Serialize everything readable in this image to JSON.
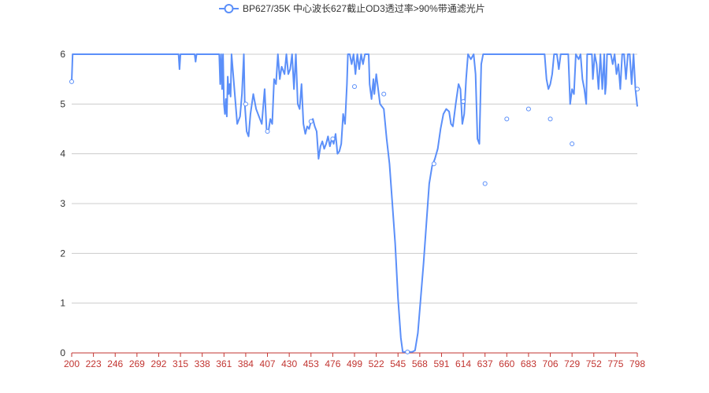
{
  "chart_data": {
    "type": "line",
    "title": "",
    "xlabel": "",
    "ylabel": "",
    "xlim": [
      200,
      798
    ],
    "ylim": [
      0,
      6
    ],
    "grid": "horizontal",
    "legend_position": "top-center",
    "x_ticks": [
      "200",
      "223",
      "246",
      "269",
      "292",
      "315",
      "338",
      "361",
      "384",
      "407",
      "430",
      "453",
      "476",
      "499",
      "522",
      "545",
      "568",
      "591",
      "614",
      "637",
      "660",
      "683",
      "706",
      "729",
      "752",
      "775",
      "798"
    ],
    "y_ticks": [
      "0",
      "1",
      "2",
      "3",
      "4",
      "5",
      "6"
    ],
    "colors": {
      "line": "#5b8ff9",
      "x_tick_label": "#c23531",
      "x_axis": "#c23531",
      "y_tick_label": "#333333",
      "grid": "#cccccc"
    },
    "series": [
      {
        "name": "BP627/35K 中心波长627截止OD3透过率>90%带通滤光片",
        "points": [
          [
            200,
            5.45
          ],
          [
            201,
            6
          ],
          [
            230,
            6
          ],
          [
            313,
            6
          ],
          [
            314,
            5.7
          ],
          [
            315,
            6
          ],
          [
            330,
            6
          ],
          [
            331,
            5.85
          ],
          [
            332,
            6
          ],
          [
            356,
            6
          ],
          [
            357,
            5.4
          ],
          [
            358,
            6
          ],
          [
            359,
            5.3
          ],
          [
            360,
            6
          ],
          [
            361,
            5.0
          ],
          [
            362,
            4.8
          ],
          [
            363,
            5.1
          ],
          [
            364,
            4.75
          ],
          [
            365,
            5.55
          ],
          [
            366,
            5.2
          ],
          [
            367,
            5.4
          ],
          [
            368,
            5.15
          ],
          [
            369,
            6
          ],
          [
            372,
            5.3
          ],
          [
            375,
            4.6
          ],
          [
            378,
            4.75
          ],
          [
            380,
            5.2
          ],
          [
            382,
            6
          ],
          [
            383,
            5.0
          ],
          [
            385,
            4.45
          ],
          [
            387,
            4.35
          ],
          [
            389,
            4.8
          ],
          [
            392,
            5.2
          ],
          [
            395,
            4.9
          ],
          [
            398,
            4.75
          ],
          [
            401,
            4.6
          ],
          [
            404,
            5.3
          ],
          [
            406,
            4.5
          ],
          [
            408,
            4.45
          ],
          [
            410,
            4.7
          ],
          [
            412,
            4.6
          ],
          [
            414,
            5.5
          ],
          [
            416,
            5.4
          ],
          [
            418,
            6
          ],
          [
            420,
            5.5
          ],
          [
            422,
            5.75
          ],
          [
            425,
            5.6
          ],
          [
            427,
            6
          ],
          [
            429,
            5.6
          ],
          [
            431,
            5.7
          ],
          [
            433,
            6
          ],
          [
            435,
            5.3
          ],
          [
            437,
            6
          ],
          [
            439,
            5.0
          ],
          [
            441,
            4.9
          ],
          [
            443,
            5.4
          ],
          [
            445,
            4.6
          ],
          [
            447,
            4.4
          ],
          [
            449,
            4.55
          ],
          [
            451,
            4.5
          ],
          [
            453,
            4.65
          ],
          [
            455,
            4.7
          ],
          [
            457,
            4.55
          ],
          [
            459,
            4.45
          ],
          [
            461,
            3.9
          ],
          [
            463,
            4.15
          ],
          [
            465,
            4.25
          ],
          [
            467,
            4.1
          ],
          [
            469,
            4.2
          ],
          [
            471,
            4.35
          ],
          [
            473,
            4.15
          ],
          [
            475,
            4.3
          ],
          [
            477,
            4.2
          ],
          [
            479,
            4.4
          ],
          [
            481,
            4.0
          ],
          [
            483,
            4.05
          ],
          [
            485,
            4.2
          ],
          [
            487,
            4.8
          ],
          [
            489,
            4.6
          ],
          [
            491,
            5.4
          ],
          [
            492,
            6
          ],
          [
            494,
            6
          ],
          [
            496,
            5.8
          ],
          [
            498,
            6
          ],
          [
            500,
            5.6
          ],
          [
            502,
            6
          ],
          [
            504,
            5.7
          ],
          [
            506,
            6
          ],
          [
            508,
            5.8
          ],
          [
            510,
            6
          ],
          [
            514,
            6
          ],
          [
            515,
            5.4
          ],
          [
            517,
            5.1
          ],
          [
            519,
            5.5
          ],
          [
            520,
            5.2
          ],
          [
            522,
            5.6
          ],
          [
            524,
            5.3
          ],
          [
            526,
            5.0
          ],
          [
            528,
            4.95
          ],
          [
            530,
            4.9
          ],
          [
            533,
            4.3
          ],
          [
            536,
            3.8
          ],
          [
            539,
            3.0
          ],
          [
            542,
            2.2
          ],
          [
            545,
            1.1
          ],
          [
            548,
            0.3
          ],
          [
            550,
            0.02
          ],
          [
            555,
            0.02
          ],
          [
            560,
            0.02
          ],
          [
            563,
            0.05
          ],
          [
            566,
            0.4
          ],
          [
            569,
            1.1
          ],
          [
            572,
            1.8
          ],
          [
            575,
            2.6
          ],
          [
            578,
            3.4
          ],
          [
            581,
            3.75
          ],
          [
            584,
            3.9
          ],
          [
            587,
            4.1
          ],
          [
            590,
            4.5
          ],
          [
            593,
            4.8
          ],
          [
            596,
            4.9
          ],
          [
            599,
            4.85
          ],
          [
            601,
            4.6
          ],
          [
            603,
            4.55
          ],
          [
            606,
            5.0
          ],
          [
            609,
            5.4
          ],
          [
            611,
            5.3
          ],
          [
            613,
            4.6
          ],
          [
            615,
            4.8
          ],
          [
            617,
            5.5
          ],
          [
            619,
            6
          ],
          [
            622,
            5.9
          ],
          [
            625,
            6
          ],
          [
            627,
            5.6
          ],
          [
            629,
            4.3
          ],
          [
            631,
            4.2
          ],
          [
            633,
            5.8
          ],
          [
            635,
            6
          ],
          [
            700,
            6
          ],
          [
            702,
            5.5
          ],
          [
            704,
            5.3
          ],
          [
            706,
            5.4
          ],
          [
            708,
            5.6
          ],
          [
            710,
            6
          ],
          [
            713,
            6
          ],
          [
            715,
            5.7
          ],
          [
            717,
            6
          ],
          [
            725,
            6
          ],
          [
            727,
            5.0
          ],
          [
            729,
            5.3
          ],
          [
            731,
            5.2
          ],
          [
            733,
            6
          ],
          [
            736,
            5.9
          ],
          [
            738,
            6
          ],
          [
            740,
            5.5
          ],
          [
            742,
            5.3
          ],
          [
            744,
            5.0
          ],
          [
            745,
            6
          ],
          [
            750,
            6
          ],
          [
            751,
            5.5
          ],
          [
            753,
            6
          ],
          [
            755,
            5.8
          ],
          [
            757,
            5.3
          ],
          [
            759,
            6
          ],
          [
            761,
            5.3
          ],
          [
            763,
            6
          ],
          [
            764,
            5.2
          ],
          [
            765,
            5.4
          ],
          [
            766,
            6
          ],
          [
            770,
            6
          ],
          [
            772,
            5.8
          ],
          [
            774,
            6
          ],
          [
            776,
            5.6
          ],
          [
            778,
            5.8
          ],
          [
            780,
            5.3
          ],
          [
            782,
            6
          ],
          [
            784,
            6
          ],
          [
            786,
            5.5
          ],
          [
            788,
            6
          ],
          [
            790,
            6
          ],
          [
            792,
            5.4
          ],
          [
            794,
            6
          ],
          [
            796,
            5.3
          ],
          [
            798,
            4.95
          ]
        ],
        "markers": [
          [
            200,
            5.45
          ],
          [
            384,
            5.0
          ],
          [
            407,
            4.45
          ],
          [
            453,
            4.65
          ],
          [
            476,
            4.3
          ],
          [
            499,
            5.35
          ],
          [
            530,
            5.2
          ],
          [
            555,
            0.02
          ],
          [
            583,
            3.8
          ],
          [
            614,
            5.05
          ],
          [
            637,
            3.4
          ],
          [
            660,
            4.7
          ],
          [
            683,
            4.9
          ],
          [
            706,
            4.7
          ],
          [
            729,
            4.2
          ],
          [
            798,
            5.3
          ]
        ]
      }
    ]
  }
}
